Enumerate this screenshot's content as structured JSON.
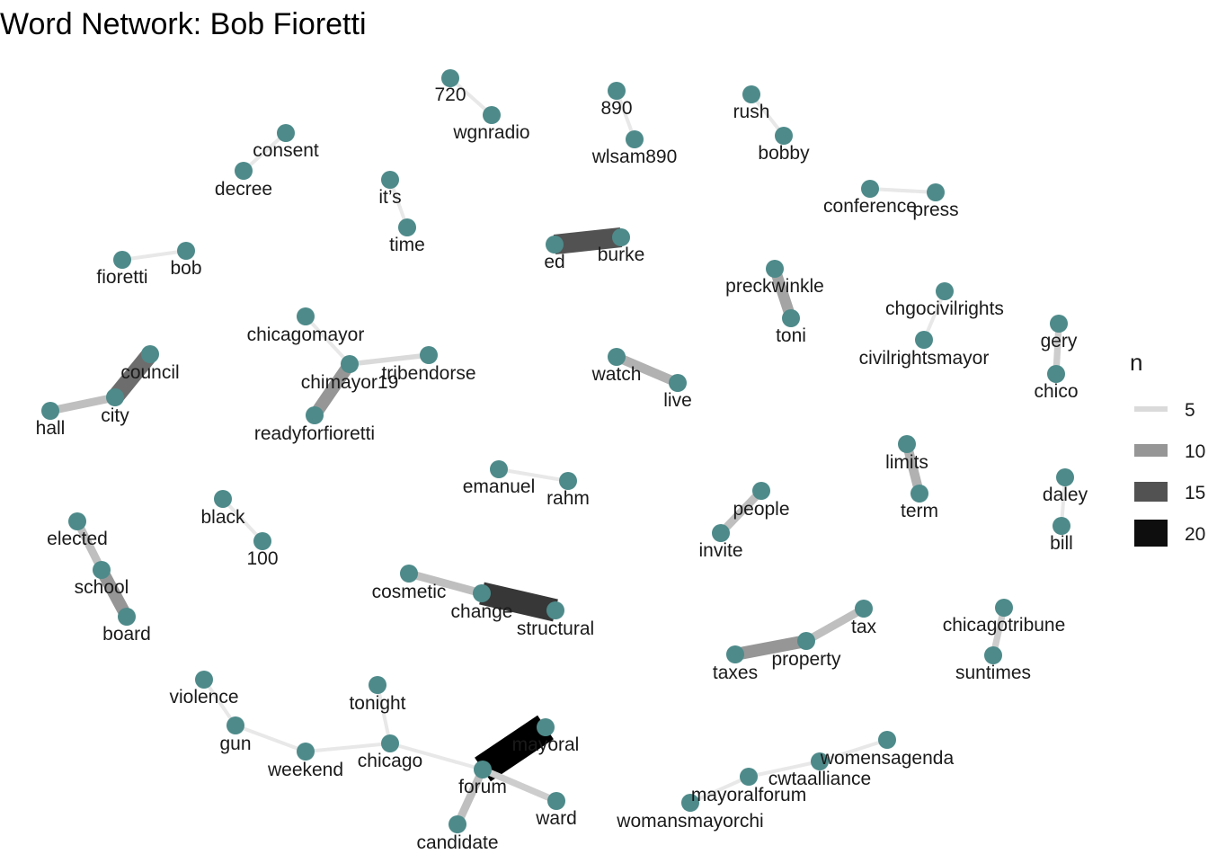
{
  "title": "Word Network: Bob Fioretti",
  "node_color": "#4e8a8a",
  "legend": {
    "title": "n",
    "items": [
      {
        "label": "5",
        "value": 5,
        "color": "#e5e5e5"
      },
      {
        "label": "10",
        "value": 10,
        "color": "#999999"
      },
      {
        "label": "15",
        "value": 15,
        "color": "#505050"
      },
      {
        "label": "20",
        "value": 20,
        "color": "#000000"
      }
    ]
  },
  "nodes": [
    {
      "id": "720",
      "label": "720"
    },
    {
      "id": "wgnradio",
      "label": "wgnradio"
    },
    {
      "id": "890",
      "label": "890"
    },
    {
      "id": "wlsam890",
      "label": "wlsam890"
    },
    {
      "id": "rush",
      "label": "rush"
    },
    {
      "id": "bobby",
      "label": "bobby"
    },
    {
      "id": "consent",
      "label": "consent"
    },
    {
      "id": "decree",
      "label": "decree"
    },
    {
      "id": "its",
      "label": "it’s"
    },
    {
      "id": "time",
      "label": "time"
    },
    {
      "id": "ed",
      "label": "ed"
    },
    {
      "id": "burke",
      "label": "burke"
    },
    {
      "id": "conference",
      "label": "conference"
    },
    {
      "id": "press",
      "label": "press"
    },
    {
      "id": "fioretti",
      "label": "fioretti"
    },
    {
      "id": "bob",
      "label": "bob"
    },
    {
      "id": "preckwinkle",
      "label": "preckwinkle"
    },
    {
      "id": "toni",
      "label": "toni"
    },
    {
      "id": "chgocivilrights",
      "label": "chgocivilrights"
    },
    {
      "id": "civilrightsmayor",
      "label": "civilrightsmayor"
    },
    {
      "id": "gery",
      "label": "gery"
    },
    {
      "id": "chico",
      "label": "chico"
    },
    {
      "id": "chicagomayor",
      "label": "chicagomayor"
    },
    {
      "id": "chimayor19",
      "label": "chimayor19"
    },
    {
      "id": "tribendorse",
      "label": "tribendorse"
    },
    {
      "id": "readyforfioretti",
      "label": "readyforfioretti"
    },
    {
      "id": "council",
      "label": "council"
    },
    {
      "id": "city",
      "label": "city"
    },
    {
      "id": "hall",
      "label": "hall"
    },
    {
      "id": "watch",
      "label": "watch"
    },
    {
      "id": "live",
      "label": "live"
    },
    {
      "id": "limits",
      "label": "limits"
    },
    {
      "id": "term",
      "label": "term"
    },
    {
      "id": "emanuel",
      "label": "emanuel"
    },
    {
      "id": "rahm",
      "label": "rahm"
    },
    {
      "id": "daley",
      "label": "daley"
    },
    {
      "id": "bill",
      "label": "bill"
    },
    {
      "id": "people",
      "label": "people"
    },
    {
      "id": "invite",
      "label": "invite"
    },
    {
      "id": "black",
      "label": "black"
    },
    {
      "id": "100",
      "label": "100"
    },
    {
      "id": "elected",
      "label": "elected"
    },
    {
      "id": "school",
      "label": "school"
    },
    {
      "id": "board",
      "label": "board"
    },
    {
      "id": "cosmetic",
      "label": "cosmetic"
    },
    {
      "id": "change",
      "label": "change"
    },
    {
      "id": "structural",
      "label": "structural"
    },
    {
      "id": "tax",
      "label": "tax"
    },
    {
      "id": "property",
      "label": "property"
    },
    {
      "id": "taxes",
      "label": "taxes"
    },
    {
      "id": "chicagotribune",
      "label": "chicagotribune"
    },
    {
      "id": "suntimes",
      "label": "suntimes"
    },
    {
      "id": "violence",
      "label": "violence"
    },
    {
      "id": "gun",
      "label": "gun"
    },
    {
      "id": "weekend",
      "label": "weekend"
    },
    {
      "id": "tonight",
      "label": "tonight"
    },
    {
      "id": "chicago",
      "label": "chicago"
    },
    {
      "id": "mayoral",
      "label": "mayoral"
    },
    {
      "id": "forum",
      "label": "forum"
    },
    {
      "id": "ward",
      "label": "ward"
    },
    {
      "id": "candidate",
      "label": "candidate"
    },
    {
      "id": "womensagenda",
      "label": "womensagenda"
    },
    {
      "id": "cwtaalliance",
      "label": "cwtaalliance"
    },
    {
      "id": "mayoralforum",
      "label": "mayoralforum"
    },
    {
      "id": "womansmayorchi",
      "label": "womansmayorchi"
    }
  ],
  "edges": [
    {
      "from": "720",
      "to": "wgnradio",
      "n": 4
    },
    {
      "from": "890",
      "to": "wlsam890",
      "n": 4
    },
    {
      "from": "rush",
      "to": "bobby",
      "n": 4
    },
    {
      "from": "consent",
      "to": "decree",
      "n": 4
    },
    {
      "from": "its",
      "to": "time",
      "n": 4
    },
    {
      "from": "ed",
      "to": "burke",
      "n": 15
    },
    {
      "from": "conference",
      "to": "press",
      "n": 4
    },
    {
      "from": "fioretti",
      "to": "bob",
      "n": 4
    },
    {
      "from": "preckwinkle",
      "to": "toni",
      "n": 9
    },
    {
      "from": "chgocivilrights",
      "to": "civilrightsmayor",
      "n": 4
    },
    {
      "from": "gery",
      "to": "chico",
      "n": 6
    },
    {
      "from": "chicagomayor",
      "to": "chimayor19",
      "n": 4
    },
    {
      "from": "chimayor19",
      "to": "tribendorse",
      "n": 5
    },
    {
      "from": "chimayor19",
      "to": "readyforfioretti",
      "n": 10
    },
    {
      "from": "council",
      "to": "city",
      "n": 13
    },
    {
      "from": "city",
      "to": "hall",
      "n": 7
    },
    {
      "from": "watch",
      "to": "live",
      "n": 8
    },
    {
      "from": "limits",
      "to": "term",
      "n": 8
    },
    {
      "from": "emanuel",
      "to": "rahm",
      "n": 4
    },
    {
      "from": "daley",
      "to": "bill",
      "n": 4
    },
    {
      "from": "people",
      "to": "invite",
      "n": 7
    },
    {
      "from": "black",
      "to": "100",
      "n": 4
    },
    {
      "from": "elected",
      "to": "school",
      "n": 7
    },
    {
      "from": "school",
      "to": "board",
      "n": 10
    },
    {
      "from": "cosmetic",
      "to": "change",
      "n": 7
    },
    {
      "from": "change",
      "to": "structural",
      "n": 17
    },
    {
      "from": "tax",
      "to": "property",
      "n": 7
    },
    {
      "from": "property",
      "to": "taxes",
      "n": 10
    },
    {
      "from": "chicagotribune",
      "to": "suntimes",
      "n": 6
    },
    {
      "from": "violence",
      "to": "gun",
      "n": 4
    },
    {
      "from": "gun",
      "to": "weekend",
      "n": 4
    },
    {
      "from": "weekend",
      "to": "chicago",
      "n": 4
    },
    {
      "from": "tonight",
      "to": "chicago",
      "n": 4
    },
    {
      "from": "chicago",
      "to": "forum",
      "n": 4
    },
    {
      "from": "mayoral",
      "to": "forum",
      "n": 21
    },
    {
      "from": "forum",
      "to": "ward",
      "n": 6
    },
    {
      "from": "forum",
      "to": "candidate",
      "n": 7
    },
    {
      "from": "womensagenda",
      "to": "cwtaalliance",
      "n": 4
    },
    {
      "from": "cwtaalliance",
      "to": "mayoralforum",
      "n": 4
    },
    {
      "from": "mayoralforum",
      "to": "womansmayorchi",
      "n": 4
    }
  ]
}
